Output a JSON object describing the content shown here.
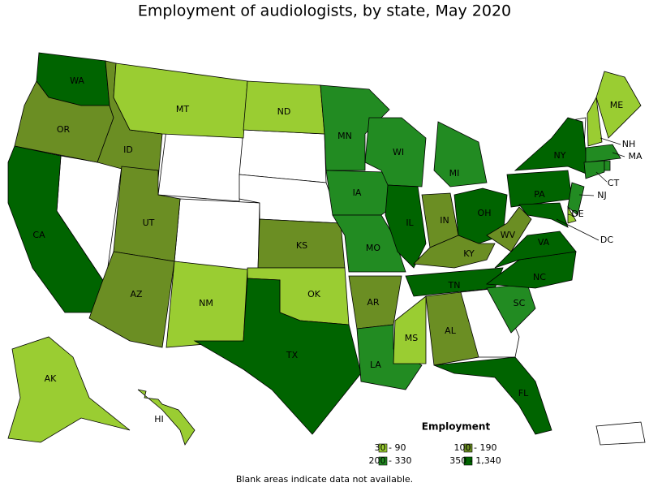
{
  "title": "Employment of audiologists, by state, May 2020",
  "footnote": "Blank areas indicate data not available.",
  "legend": {
    "title": "Employment",
    "classes": [
      {
        "label": "30 - 90",
        "color": "#9acd32"
      },
      {
        "label": "100 - 190",
        "color": "#6b8e23"
      },
      {
        "label": "200 - 330",
        "color": "#228b22"
      },
      {
        "label": "350 - 1,340",
        "color": "#006400"
      }
    ]
  },
  "states": [
    {
      "label": "WA",
      "class": 3
    },
    {
      "label": "OR",
      "class": 1
    },
    {
      "label": "CA",
      "class": 3
    },
    {
      "label": "ID",
      "class": 1
    },
    {
      "label": "MT",
      "class": 0
    },
    {
      "label": "UT",
      "class": 1
    },
    {
      "label": "AZ",
      "class": 1
    },
    {
      "label": "NM",
      "class": 0
    },
    {
      "label": "ND",
      "class": 0
    },
    {
      "label": "KS",
      "class": 1
    },
    {
      "label": "OK",
      "class": 0
    },
    {
      "label": "TX",
      "class": 3
    },
    {
      "label": "MN",
      "class": 2
    },
    {
      "label": "IA",
      "class": 2
    },
    {
      "label": "MO",
      "class": 2
    },
    {
      "label": "AR",
      "class": 1
    },
    {
      "label": "LA",
      "class": 2
    },
    {
      "label": "WI",
      "class": 2
    },
    {
      "label": "IL",
      "class": 3
    },
    {
      "label": "MI",
      "class": 2
    },
    {
      "label": "IN",
      "class": 1
    },
    {
      "label": "OH",
      "class": 3
    },
    {
      "label": "KY",
      "class": 1
    },
    {
      "label": "TN",
      "class": 3
    },
    {
      "label": "MS",
      "class": 0
    },
    {
      "label": "AL",
      "class": 1
    },
    {
      "label": "FL",
      "class": 3
    },
    {
      "label": "SC",
      "class": 2
    },
    {
      "label": "NC",
      "class": 3
    },
    {
      "label": "VA",
      "class": 3
    },
    {
      "label": "WV",
      "class": 1
    },
    {
      "label": "PA",
      "class": 3
    },
    {
      "label": "NY",
      "class": 3
    },
    {
      "label": "ME",
      "class": 0
    },
    {
      "label": "NH",
      "class": 0
    },
    {
      "label": "MA",
      "class": 2
    },
    {
      "label": "CT",
      "class": 2
    },
    {
      "label": "NJ",
      "class": 2
    },
    {
      "label": "DE",
      "class": 0
    },
    {
      "label": "DC",
      "class": 3
    },
    {
      "label": "AK",
      "class": 0
    },
    {
      "label": "HI",
      "class": 0
    },
    {
      "class": 3
    },
    {
      "class": 2
    }
  ]
}
